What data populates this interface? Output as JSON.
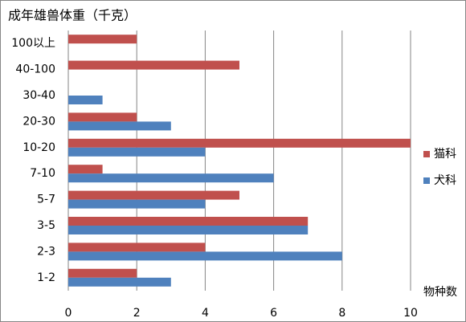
{
  "chart_data": {
    "type": "hbar",
    "title": "成年雄兽体重（千克）",
    "x_label": "物种数",
    "categories": [
      "1-2",
      "2-3",
      "3-5",
      "5-7",
      "7-10",
      "10-20",
      "20-30",
      "30-40",
      "40-100",
      "100以上"
    ],
    "series": [
      {
        "name": "猫科",
        "color": "#c0504d",
        "values": [
          2,
          4,
          7,
          5,
          1,
          10,
          2,
          0,
          5,
          2
        ]
      },
      {
        "name": "犬科",
        "color": "#4f81bd",
        "values": [
          3,
          8,
          7,
          4,
          6,
          4,
          3,
          1,
          0,
          0
        ]
      }
    ],
    "xlim": [
      0,
      10
    ],
    "xticks": [
      0,
      2,
      4,
      6,
      8,
      10
    ],
    "grid": true,
    "legend": "right"
  }
}
